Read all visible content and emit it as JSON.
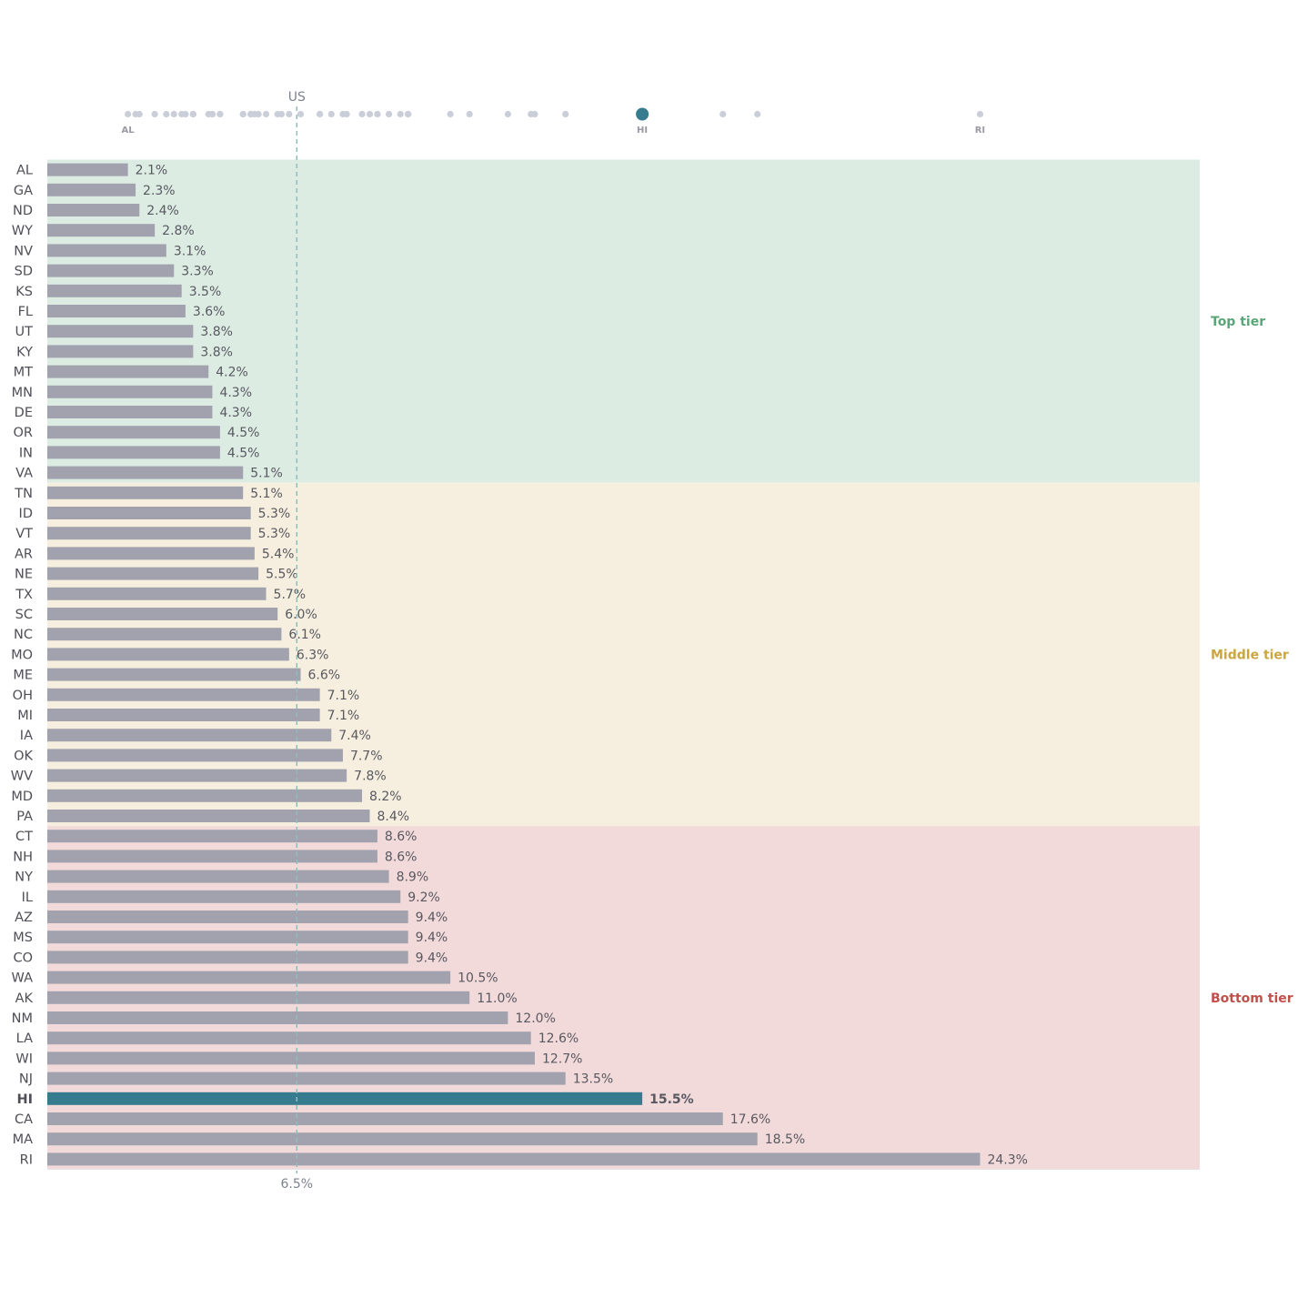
{
  "chart_data": {
    "type": "bar",
    "orientation": "horizontal",
    "highlight": "HI",
    "value_suffix": "%",
    "reference": {
      "label": "US",
      "value": 6.5,
      "value_label": "6.5%"
    },
    "categories": [
      "AL",
      "GA",
      "ND",
      "WY",
      "NV",
      "SD",
      "KS",
      "FL",
      "UT",
      "KY",
      "MT",
      "MN",
      "DE",
      "OR",
      "IN",
      "VA",
      "TN",
      "ID",
      "VT",
      "AR",
      "NE",
      "TX",
      "SC",
      "NC",
      "MO",
      "ME",
      "OH",
      "MI",
      "IA",
      "OK",
      "WV",
      "MD",
      "PA",
      "CT",
      "NH",
      "NY",
      "IL",
      "AZ",
      "MS",
      "CO",
      "WA",
      "AK",
      "NM",
      "LA",
      "WI",
      "NJ",
      "HI",
      "CA",
      "MA",
      "RI"
    ],
    "values": [
      2.1,
      2.3,
      2.4,
      2.8,
      3.1,
      3.3,
      3.5,
      3.6,
      3.8,
      3.8,
      4.2,
      4.3,
      4.3,
      4.5,
      4.5,
      5.1,
      5.1,
      5.3,
      5.3,
      5.4,
      5.5,
      5.7,
      6.0,
      6.1,
      6.3,
      6.6,
      7.1,
      7.1,
      7.4,
      7.7,
      7.8,
      8.2,
      8.4,
      8.6,
      8.6,
      8.9,
      9.2,
      9.4,
      9.4,
      9.4,
      10.5,
      11.0,
      12.0,
      12.6,
      12.7,
      13.5,
      15.5,
      17.6,
      18.5,
      24.3
    ],
    "value_labels": [
      "2.1%",
      "2.3%",
      "2.4%",
      "2.8%",
      "3.1%",
      "3.3%",
      "3.5%",
      "3.6%",
      "3.8%",
      "3.8%",
      "4.2%",
      "4.3%",
      "4.3%",
      "4.5%",
      "4.5%",
      "5.1%",
      "5.1%",
      "5.3%",
      "5.3%",
      "5.4%",
      "5.5%",
      "5.7%",
      "6.0%",
      "6.1%",
      "6.3%",
      "6.6%",
      "7.1%",
      "7.1%",
      "7.4%",
      "7.7%",
      "7.8%",
      "8.2%",
      "8.4%",
      "8.6%",
      "8.6%",
      "8.9%",
      "9.2%",
      "9.4%",
      "9.4%",
      "9.4%",
      "10.5%",
      "11.0%",
      "12.0%",
      "12.6%",
      "12.7%",
      "13.5%",
      "15.5%",
      "17.6%",
      "18.5%",
      "24.3%"
    ],
    "tiers": [
      {
        "name": "Top tier",
        "from_index": 0,
        "to_index": 15,
        "color": "#dcece3",
        "text_color": "#5aa577"
      },
      {
        "name": "Middle tier",
        "from_index": 16,
        "to_index": 32,
        "color": "#f6efdf",
        "text_color": "#c9a640"
      },
      {
        "name": "Bottom tier",
        "from_index": 33,
        "to_index": 49,
        "color": "#f2dada",
        "text_color": "#c0504b"
      }
    ],
    "strip_labels": [
      "AL",
      "HI",
      "RI"
    ],
    "xlim": [
      0,
      30
    ]
  },
  "colors": {
    "bar": "#a1a2ad",
    "highlight": "#367b8e",
    "dot": "#c9ced8",
    "reference_line": "#8fbcbc"
  }
}
